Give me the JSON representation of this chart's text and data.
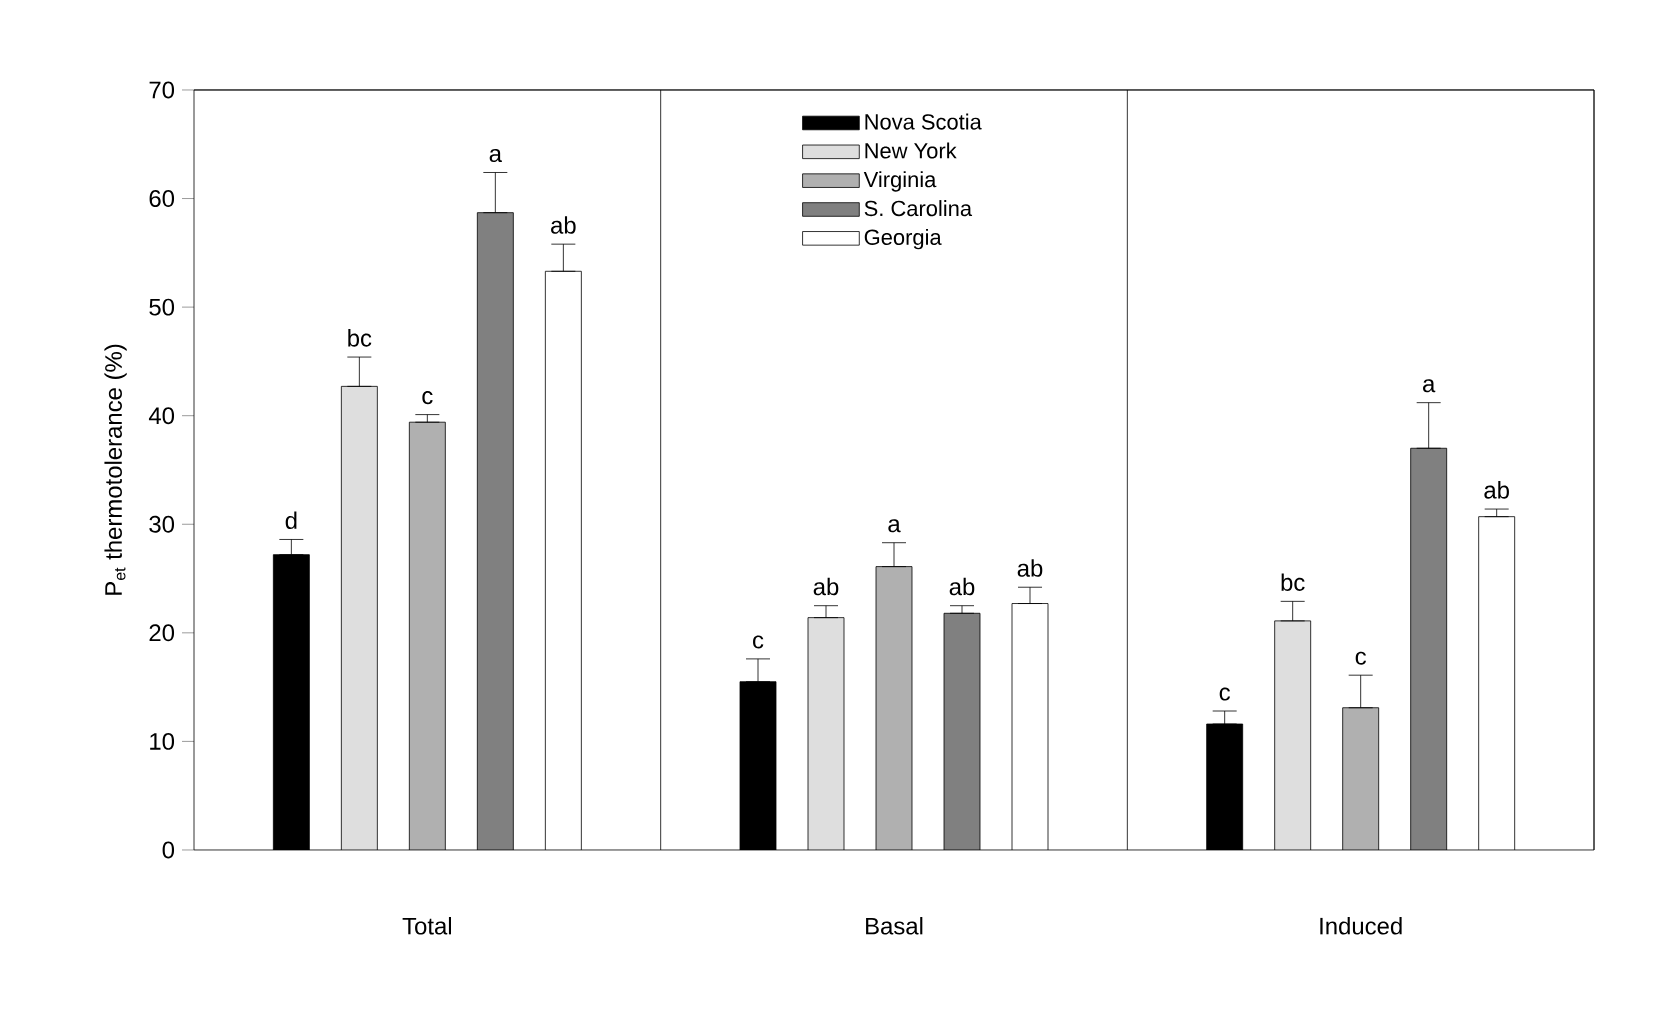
{
  "chart_data": {
    "type": "bar",
    "categories": [
      "Total",
      "Basal",
      "Induced"
    ],
    "ylabel": "P$_{et}$ thermotolerance (%)",
    "ylim": [
      0,
      70
    ],
    "yticks": [
      0,
      10,
      20,
      30,
      40,
      50,
      60,
      70
    ],
    "legend": "top",
    "series": [
      {
        "name": "Nova Scotia",
        "color": "#000000",
        "values": [
          27.2,
          15.5,
          11.6
        ],
        "errors": [
          [
            27.2,
            28.6
          ],
          [
            15.5,
            17.6
          ],
          [
            11.6,
            12.8
          ]
        ]
      },
      {
        "name": "New York",
        "color": "#dedede",
        "values": [
          42.7,
          21.4,
          21.1
        ],
        "errors": [
          [
            42.7,
            45.4
          ],
          [
            21.4,
            22.5
          ],
          [
            21.1,
            22.9
          ]
        ]
      },
      {
        "name": "Virginia",
        "color": "#b0b0b0",
        "values": [
          39.4,
          26.1,
          13.1
        ],
        "errors": [
          [
            39.4,
            40.1
          ],
          [
            26.1,
            28.3
          ],
          [
            13.1,
            16.1
          ]
        ]
      },
      {
        "name": "S. Carolina",
        "color": "#808080",
        "values": [
          58.7,
          21.8,
          37.0
        ],
        "errors": [
          [
            58.7,
            62.4
          ],
          [
            21.8,
            22.5
          ],
          [
            37.0,
            41.2
          ]
        ]
      },
      {
        "name": "Georgia",
        "color": "#ffffff",
        "values": [
          53.3,
          22.7,
          30.7
        ],
        "errors": [
          [
            53.3,
            55.8
          ],
          [
            22.7,
            24.2
          ],
          [
            30.7,
            31.4
          ]
        ]
      }
    ],
    "annotations": [
      "d",
      "bc",
      "c",
      "a",
      "ab",
      "c",
      "ab",
      "a",
      "ab",
      "ab",
      "c",
      "bc",
      "c",
      "a",
      "ab"
    ]
  }
}
